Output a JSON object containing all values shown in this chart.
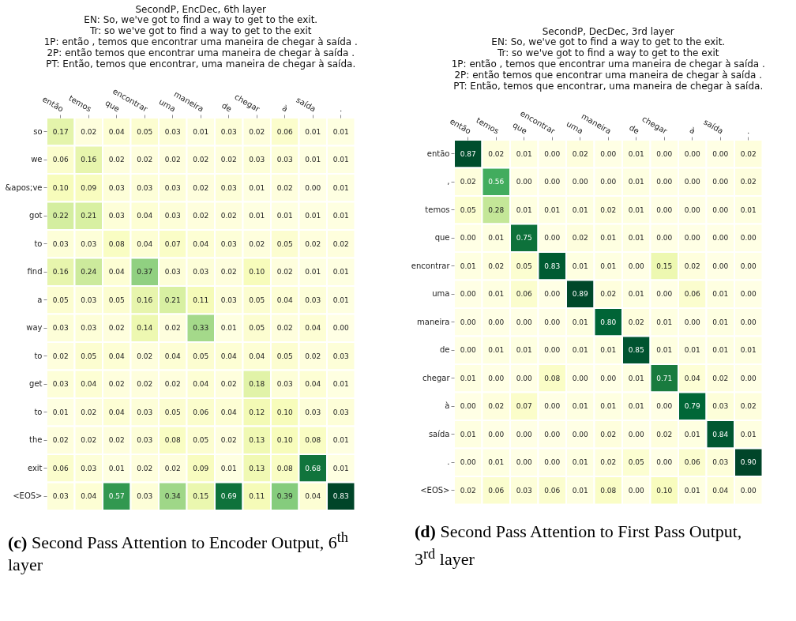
{
  "chart_data": [
    {
      "type": "heatmap",
      "title": "SecondP, EncDec, 6th layer",
      "subtitle": "EN: So, we've got to find a way to get to the exit.\nTr: so we've got to find a way to get to the exit\n1P: então , temos que encontrar uma maneira de chegar à saída .\n2P: então temos que encontrar uma maneira de chegar à saída .\nPT: Então, temos que encontrar, uma maneira de chegar à saída.",
      "categories": [
        "então",
        "temos",
        "que",
        "encontrar",
        "uma",
        "maneira",
        "de",
        "chegar",
        "à",
        "saída",
        "."
      ],
      "y_categories": [
        "so",
        "we",
        "&apos;ve",
        "got",
        "to",
        "find",
        "a",
        "way",
        "to",
        "get",
        "to",
        "the",
        "exit",
        "<EOS>"
      ],
      "cells": [
        [
          0.17,
          0.02,
          0.04,
          0.05,
          0.03,
          0.01,
          0.03,
          0.02,
          0.06,
          0.01,
          0.01
        ],
        [
          0.06,
          0.16,
          0.02,
          0.02,
          0.02,
          0.02,
          0.02,
          0.03,
          0.03,
          0.01,
          0.01
        ],
        [
          0.1,
          0.09,
          0.03,
          0.03,
          0.03,
          0.02,
          0.03,
          0.01,
          0.02,
          0.0,
          0.01
        ],
        [
          0.22,
          0.21,
          0.03,
          0.04,
          0.03,
          0.02,
          0.02,
          0.01,
          0.01,
          0.01,
          0.01
        ],
        [
          0.03,
          0.03,
          0.08,
          0.04,
          0.07,
          0.04,
          0.03,
          0.02,
          0.05,
          0.02,
          0.02
        ],
        [
          0.16,
          0.24,
          0.04,
          0.37,
          0.03,
          0.03,
          0.02,
          0.1,
          0.02,
          0.01,
          0.01
        ],
        [
          0.05,
          0.03,
          0.05,
          0.16,
          0.21,
          0.11,
          0.03,
          0.05,
          0.04,
          0.03,
          0.01
        ],
        [
          0.03,
          0.03,
          0.02,
          0.14,
          0.02,
          0.33,
          0.01,
          0.05,
          0.02,
          0.04,
          0.0
        ],
        [
          0.02,
          0.05,
          0.04,
          0.02,
          0.04,
          0.05,
          0.04,
          0.04,
          0.05,
          0.02,
          0.03
        ],
        [
          0.03,
          0.04,
          0.02,
          0.02,
          0.02,
          0.04,
          0.02,
          0.18,
          0.03,
          0.04,
          0.01
        ],
        [
          0.01,
          0.02,
          0.04,
          0.03,
          0.05,
          0.06,
          0.04,
          0.12,
          0.1,
          0.03,
          0.03
        ],
        [
          0.02,
          0.02,
          0.02,
          0.03,
          0.08,
          0.05,
          0.02,
          0.13,
          0.1,
          0.08,
          0.01
        ],
        [
          0.06,
          0.03,
          0.01,
          0.02,
          0.02,
          0.09,
          0.01,
          0.13,
          0.08,
          0.68,
          0.01
        ],
        [
          0.03,
          0.04,
          0.57,
          0.03,
          0.34,
          0.15,
          0.69,
          0.11,
          0.39,
          0.04,
          0.83
        ]
      ],
      "cell_labels": [
        [
          "0.17",
          "0.02",
          "0.04",
          "0.05",
          "0.03",
          "0.01",
          "0.03",
          "0.02",
          "0.06",
          "0.01",
          "0.01"
        ],
        [
          "0.06",
          "0.16",
          "0.02",
          "0.02",
          "0.02",
          "0.02",
          "0.02",
          "0.03",
          "0.03",
          "0.01",
          "0.01"
        ],
        [
          "0.10",
          "0.09",
          "0.03",
          "0.03",
          "0.03",
          "0.02",
          "0.03",
          "0.01",
          "0.02",
          "0.00",
          "0.01"
        ],
        [
          "0.22",
          "0.21",
          "0.03",
          "0.04",
          "0.03",
          "0.02",
          "0.02",
          "0.01",
          "0.01",
          "0.01",
          "0.01"
        ],
        [
          "0.03",
          "0.03",
          "0.08",
          "0.04",
          "0.07",
          "0.04",
          "0.03",
          "0.02",
          "0.05",
          "0.02",
          "0.02"
        ],
        [
          "0.16",
          "0.24",
          "0.04",
          "0.37",
          "0.03",
          "0.03",
          "0.02",
          "0.10",
          "0.02",
          "0.01",
          "0.01"
        ],
        [
          "0.05",
          "0.03",
          "0.05",
          "0.16",
          "0.21",
          "0.11",
          "0.03",
          "0.05",
          "0.04",
          "0.03",
          "0.01"
        ],
        [
          "0.03",
          "0.03",
          "0.02",
          "0.14",
          "0.02",
          "0.33",
          "0.01",
          "0.05",
          "0.02",
          "0.04",
          "0.00"
        ],
        [
          "0.02",
          "0.05",
          "0.04",
          "0.02",
          "0.04",
          "0.05",
          "0.04",
          "0.04",
          "0.05",
          "0.02",
          "0.03"
        ],
        [
          "0.03",
          "0.04",
          "0.02",
          "0.02",
          "0.02",
          "0.04",
          "0.02",
          "0.18",
          "0.03",
          "0.04",
          "0.01"
        ],
        [
          "0.01",
          "0.02",
          "0.04",
          "0.03",
          "0.05",
          "0.06",
          "0.04",
          "0.12",
          "0.10",
          "0.03",
          "0.03"
        ],
        [
          "0.02",
          "0.02",
          "0.02",
          "0.03",
          "0.08",
          "0.05",
          "0.02",
          "0.13",
          "0.10",
          "0.08",
          "0.01"
        ],
        [
          "0.06",
          "0.03",
          "0.01",
          "0.02",
          "0.02",
          "0.09",
          "0.01",
          "0.13",
          "0.08",
          "0.68",
          "0.01"
        ],
        [
          "0.03",
          "0.04",
          "0.57",
          "0.03",
          "0.34",
          "0.15",
          "0.69",
          "0.11",
          "0.39",
          "0.04",
          "0.83"
        ]
      ],
      "annotations": [
        "(c) Second Pass Attention to Encoder Output, 6$^{th}$ layer"
      ]
    },
    {
      "type": "heatmap",
      "title": "SecondP, DecDec, 3rd layer",
      "subtitle": "EN: So, we've got to find a way to get to the exit.\nTr: so we've got to find a way to get to the exit\n1P: então , temos que encontrar uma maneira de chegar à saída .\n2P: então temos que encontrar uma maneira de chegar à saída .\nPT: Então, temos que encontrar, uma maneira de chegar à saída.",
      "categories": [
        "então",
        "temos",
        "que",
        "encontrar",
        "uma",
        "maneira",
        "de",
        "chegar",
        "à",
        "saída",
        "."
      ],
      "y_categories": [
        "então",
        ",",
        "temos",
        "que",
        "encontrar",
        "uma",
        "maneira",
        "de",
        "chegar",
        "à",
        "saída",
        ".",
        "<EOS>"
      ],
      "cells": [
        [
          0.87,
          0.02,
          0.01,
          0.0,
          0.02,
          0.0,
          0.01,
          0.0,
          0.0,
          0.0,
          0.02
        ],
        [
          0.02,
          0.56,
          0.0,
          0.0,
          0.0,
          0.0,
          0.01,
          0.0,
          0.0,
          0.0,
          0.02
        ],
        [
          0.05,
          0.28,
          0.01,
          0.01,
          0.01,
          0.02,
          0.01,
          0.0,
          0.0,
          0.0,
          0.01
        ],
        [
          0.0,
          0.01,
          0.75,
          0.0,
          0.02,
          0.01,
          0.01,
          0.0,
          0.0,
          0.0,
          0.0
        ],
        [
          0.01,
          0.02,
          0.05,
          0.83,
          0.01,
          0.01,
          0.0,
          0.15,
          0.02,
          0.0,
          0.0
        ],
        [
          0.0,
          0.01,
          0.06,
          0.0,
          0.89,
          0.02,
          0.01,
          0.0,
          0.06,
          0.01,
          0.0
        ],
        [
          0.0,
          0.0,
          0.0,
          0.0,
          0.01,
          0.8,
          0.02,
          0.01,
          0.0,
          0.01,
          0.0
        ],
        [
          0.0,
          0.01,
          0.01,
          0.0,
          0.01,
          0.01,
          0.85,
          0.01,
          0.01,
          0.01,
          0.01
        ],
        [
          0.01,
          0.0,
          0.0,
          0.08,
          0.0,
          0.0,
          0.01,
          0.71,
          0.04,
          0.02,
          0.0
        ],
        [
          0.0,
          0.02,
          0.07,
          0.0,
          0.01,
          0.01,
          0.01,
          0.0,
          0.79,
          0.03,
          0.02
        ],
        [
          0.01,
          0.0,
          0.0,
          0.0,
          0.0,
          0.02,
          0.0,
          0.02,
          0.01,
          0.84,
          0.01
        ],
        [
          0.0,
          0.01,
          0.0,
          0.0,
          0.01,
          0.02,
          0.05,
          0.0,
          0.06,
          0.03,
          0.9
        ],
        [
          0.02,
          0.06,
          0.03,
          0.06,
          0.01,
          0.08,
          0.0,
          0.1,
          0.01,
          0.04,
          0.0
        ]
      ],
      "cell_labels": [
        [
          "0.87",
          "0.02",
          "0.01",
          "0.00",
          "0.02",
          "0.00",
          "0.01",
          "0.00",
          "0.00",
          "0.00",
          "0.02"
        ],
        [
          "0.02",
          "0.56",
          "0.00",
          "0.00",
          "0.00",
          "0.00",
          "0.01",
          "0.00",
          "0.00",
          "0.00",
          "0.02"
        ],
        [
          "0.05",
          "0.28",
          "0.01",
          "0.01",
          "0.01",
          "0.02",
          "0.01",
          "0.00",
          "0.00",
          "0.00",
          "0.01"
        ],
        [
          "0.00",
          "0.01",
          "0.75",
          "0.00",
          "0.02",
          "0.01",
          "0.01",
          "0.00",
          "0.00",
          "0.00",
          "0.00"
        ],
        [
          "0.01",
          "0.02",
          "0.05",
          "0.83",
          "0.01",
          "0.01",
          "0.00",
          "0.15",
          "0.02",
          "0.00",
          "0.00"
        ],
        [
          "0.00",
          "0.01",
          "0.06",
          "0.00",
          "0.89",
          "0.02",
          "0.01",
          "0.00",
          "0.06",
          "0.01",
          "0.00"
        ],
        [
          "0.00",
          "0.00",
          "0.00",
          "0.00",
          "0.01",
          "0.80",
          "0.02",
          "0.01",
          "0.00",
          "0.01",
          "0.00"
        ],
        [
          "0.00",
          "0.01",
          "0.01",
          "0.00",
          "0.01",
          "0.01",
          "0.85",
          "0.01",
          "0.01",
          "0.01",
          "0.01"
        ],
        [
          "0.01",
          "0.00",
          "0.00",
          "0.08",
          "0.00",
          "0.00",
          "0.01",
          "0.71",
          "0.04",
          "0.02",
          "0.00"
        ],
        [
          "0.00",
          "0.02",
          "0.07",
          "0.00",
          "0.01",
          "0.01",
          "0.01",
          "0.00",
          "0.79",
          "0.03",
          "0.02"
        ],
        [
          "0.01",
          "0.00",
          "0.00",
          "0.00",
          "0.00",
          "0.02",
          "0.00",
          "0.02",
          "0.01",
          "0.84",
          "0.01"
        ],
        [
          "0.00",
          "0.01",
          "0.00",
          "0.00",
          "0.01",
          "0.02",
          "0.05",
          "0.00",
          "0.06",
          "0.03",
          "0.90"
        ],
        [
          "0.02",
          "0.06",
          "0.03",
          "0.06",
          "0.01",
          "0.08",
          "0.00",
          "0.10",
          "0.01",
          "0.04",
          "0.00"
        ]
      ],
      "annotations": [
        "(d) Second Pass Attention to First Pass Output, 3$^{rd}$ layer"
      ]
    }
  ]
}
